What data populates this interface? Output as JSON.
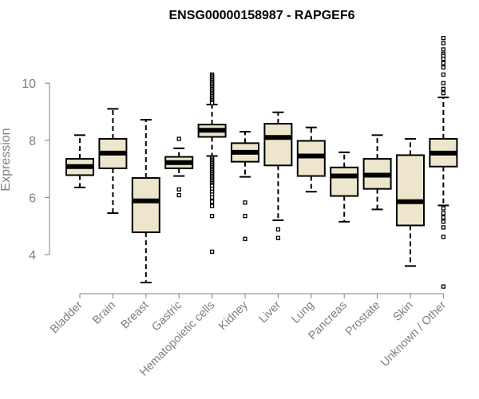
{
  "chart_data": {
    "type": "boxplot",
    "title": "ENSG00000158987 - RAPGEF6",
    "xlabel": "",
    "ylabel": "Expression",
    "ylim": [
      2.6,
      11.9
    ],
    "yticks": [
      4,
      6,
      8,
      10
    ],
    "colors": {
      "box_fill": "#ede6cc",
      "stroke": "#000000",
      "axis": "#7f7f7f"
    },
    "categories": [
      "Bladder",
      "Brain",
      "Breast",
      "Gastric",
      "Hematopoietic cells",
      "Kidney",
      "Liver",
      "Lung",
      "Pancreas",
      "Prostate",
      "Skin",
      "Unknown / Other"
    ],
    "boxes": [
      {
        "category": "Bladder",
        "whisker_low": 6.35,
        "q1": 6.78,
        "median": 7.08,
        "q3": 7.35,
        "whisker_high": 8.18,
        "outliers": []
      },
      {
        "category": "Brain",
        "whisker_low": 5.45,
        "q1": 7.02,
        "median": 7.55,
        "q3": 8.05,
        "whisker_high": 9.1,
        "outliers": []
      },
      {
        "category": "Breast",
        "whisker_low": 3.02,
        "q1": 4.78,
        "median": 5.88,
        "q3": 6.68,
        "whisker_high": 8.72,
        "outliers": []
      },
      {
        "category": "Gastric",
        "whisker_low": 6.75,
        "q1": 7.02,
        "median": 7.22,
        "q3": 7.42,
        "whisker_high": 7.72,
        "outliers": [
          8.05,
          6.28,
          6.08
        ]
      },
      {
        "category": "Hematopoietic cells",
        "whisker_low": 7.45,
        "q1": 8.12,
        "median": 8.35,
        "q3": 8.55,
        "whisker_high": 9.25,
        "outliers": [
          10.3,
          10.25,
          10.2,
          10.15,
          10.1,
          10.05,
          10.0,
          9.95,
          9.9,
          9.85,
          9.8,
          9.75,
          9.7,
          9.65,
          9.6,
          9.55,
          9.5,
          9.45,
          9.4,
          9.35,
          9.3,
          7.4,
          7.35,
          7.3,
          7.25,
          7.2,
          7.15,
          7.1,
          7.05,
          7.0,
          6.95,
          6.9,
          6.85,
          6.8,
          6.75,
          6.7,
          6.65,
          6.6,
          6.55,
          6.5,
          6.45,
          6.4,
          6.3,
          6.2,
          6.1,
          6.0,
          5.85,
          5.7,
          5.35,
          4.1
        ]
      },
      {
        "category": "Kidney",
        "whisker_low": 6.72,
        "q1": 7.25,
        "median": 7.58,
        "q3": 7.9,
        "whisker_high": 8.3,
        "outliers": [
          5.82,
          5.35,
          4.55
        ]
      },
      {
        "category": "Liver",
        "whisker_low": 5.2,
        "q1": 7.12,
        "median": 8.1,
        "q3": 8.58,
        "whisker_high": 8.98,
        "outliers": [
          4.88,
          4.58
        ]
      },
      {
        "category": "Lung",
        "whisker_low": 6.2,
        "q1": 6.75,
        "median": 7.45,
        "q3": 7.98,
        "whisker_high": 8.45,
        "outliers": []
      },
      {
        "category": "Pancreas",
        "whisker_low": 5.15,
        "q1": 6.05,
        "median": 6.75,
        "q3": 7.05,
        "whisker_high": 7.58,
        "outliers": []
      },
      {
        "category": "Prostate",
        "whisker_low": 5.58,
        "q1": 6.3,
        "median": 6.78,
        "q3": 7.35,
        "whisker_high": 8.18,
        "outliers": []
      },
      {
        "category": "Skin",
        "whisker_low": 3.6,
        "q1": 5.02,
        "median": 5.85,
        "q3": 7.48,
        "whisker_high": 8.05,
        "outliers": []
      },
      {
        "category": "Unknown / Other",
        "whisker_low": 5.72,
        "q1": 7.08,
        "median": 7.55,
        "q3": 8.05,
        "whisker_high": 9.5,
        "outliers": [
          11.58,
          11.4,
          11.18,
          11.02,
          10.95,
          10.85,
          10.7,
          10.55,
          10.3,
          10.0,
          9.8,
          9.65,
          5.62,
          5.45,
          5.3,
          5.15,
          4.95,
          4.62,
          2.88
        ]
      }
    ]
  }
}
